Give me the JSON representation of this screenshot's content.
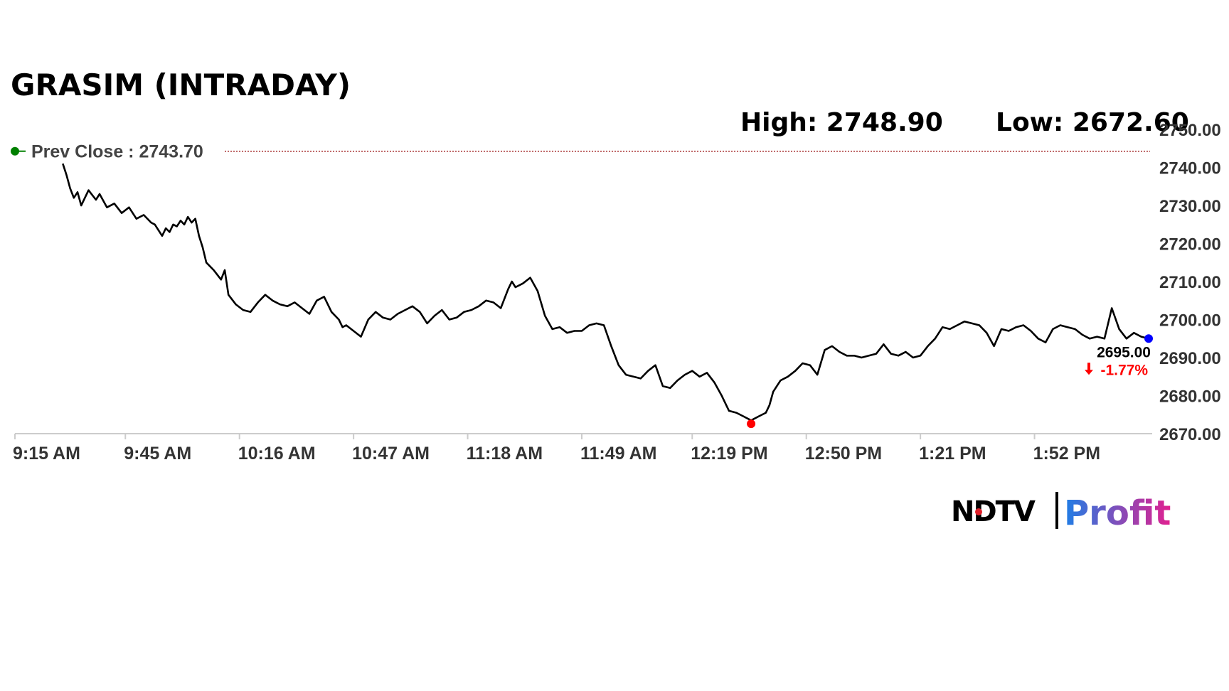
{
  "chart_data": {
    "type": "line",
    "title": "GRASIM (INTRADAY)",
    "high_label": "High: 2748.90",
    "low_label": "Low: 2672.60",
    "prev_close_label": "Prev Close : 2743.70",
    "prev_close": 2743.7,
    "last_value_label": "2695.00",
    "change_label": "-1.77%",
    "last_value": 2695.0,
    "low_value": 2672.6,
    "y_ticks": [
      "2750.00",
      "2740.00",
      "2730.00",
      "2720.00",
      "2710.00",
      "2700.00",
      "2690.00",
      "2680.00",
      "2670.00"
    ],
    "ylim": [
      2670,
      2750
    ],
    "x_ticks": [
      "9:15 AM",
      "9:45 AM",
      "10:16 AM",
      "10:47 AM",
      "11:18 AM",
      "11:49 AM",
      "12:19 PM",
      "12:50 PM",
      "1:21 PM",
      "1:52 PM"
    ],
    "x_tick_minutes": [
      0,
      30,
      61,
      92,
      123,
      154,
      184,
      215,
      246,
      277
    ],
    "xlim_minutes": [
      0,
      308
    ],
    "series": [
      {
        "x_minutes": [
          13,
          14,
          15,
          16,
          17,
          18,
          20,
          22,
          23,
          25,
          27,
          29,
          31,
          33,
          35,
          37,
          38,
          39,
          40,
          41,
          42,
          43,
          44,
          45,
          46,
          47,
          48,
          49,
          50,
          51,
          52,
          54,
          56,
          57,
          58,
          60,
          62,
          64,
          66,
          68,
          70,
          72,
          74,
          76,
          78,
          80,
          82,
          84,
          86,
          88,
          89,
          90,
          92,
          94,
          96,
          98,
          100,
          102,
          104,
          106,
          108,
          110,
          112,
          114,
          116,
          118,
          120,
          122,
          124,
          126,
          128,
          130,
          132,
          134,
          135,
          136,
          138,
          140,
          142,
          144,
          146,
          148,
          150,
          152,
          154,
          156,
          158,
          160,
          162,
          164,
          166,
          168,
          170,
          172,
          174,
          176,
          178,
          180,
          182,
          184,
          186,
          188,
          190,
          192,
          194,
          196,
          198,
          200,
          202,
          204,
          205,
          206,
          208,
          210,
          212,
          214,
          216,
          218,
          220,
          222,
          224,
          226,
          228,
          230,
          232,
          234,
          236,
          238,
          240,
          242,
          244,
          246,
          248,
          250,
          252,
          254,
          256,
          258,
          260,
          262,
          264,
          266,
          268,
          270,
          272,
          274,
          276,
          278,
          280,
          282,
          284,
          286,
          288,
          290,
          292,
          294,
          296,
          298,
          300,
          302,
          304,
          306,
          308
        ],
        "values": [
          2741.0,
          2738.0,
          2734.5,
          2732.0,
          2733.5,
          2730.0,
          2734.0,
          2731.5,
          2733.0,
          2729.5,
          2730.5,
          2728.0,
          2729.5,
          2726.5,
          2727.5,
          2725.5,
          2725.0,
          2723.5,
          2722.0,
          2724.0,
          2723.0,
          2725.0,
          2724.5,
          2726.0,
          2725.0,
          2727.0,
          2725.5,
          2726.5,
          2722.0,
          2719.0,
          2715.0,
          2713.0,
          2710.5,
          2713.0,
          2706.5,
          2704.0,
          2702.5,
          2702.0,
          2704.5,
          2706.5,
          2705.0,
          2704.0,
          2703.5,
          2704.5,
          2703.0,
          2701.5,
          2705.0,
          2706.0,
          2702.0,
          2700.0,
          2698.0,
          2698.5,
          2697.0,
          2695.5,
          2700.0,
          2702.0,
          2700.5,
          2700.0,
          2701.5,
          2702.5,
          2703.5,
          2702.0,
          2699.0,
          2701.0,
          2702.5,
          2700.0,
          2700.5,
          2702.0,
          2702.5,
          2703.5,
          2705.0,
          2704.5,
          2703.0,
          2708.0,
          2710.0,
          2708.5,
          2709.5,
          2711.0,
          2707.5,
          2701.0,
          2697.5,
          2698.0,
          2696.5,
          2697.0,
          2697.0,
          2698.5,
          2699.0,
          2698.5,
          2693.0,
          2688.0,
          2685.5,
          2685.0,
          2684.5,
          2686.5,
          2688.0,
          2682.5,
          2682.0,
          2684.0,
          2685.5,
          2686.5,
          2685.0,
          2686.0,
          2683.5,
          2680.0,
          2676.0,
          2675.5,
          2674.5,
          2673.5,
          2674.5,
          2675.5,
          2677.5,
          2681.0,
          2684.0,
          2685.0,
          2686.5,
          2688.5,
          2688.0,
          2685.5,
          2692.0,
          2693.0,
          2691.5,
          2690.5,
          2690.5,
          2690.0,
          2690.5,
          2691.0,
          2693.5,
          2691.0,
          2690.5,
          2691.5,
          2690.0,
          2690.5,
          2693.0,
          2695.0,
          2698.0,
          2697.5,
          2698.5,
          2699.5,
          2699.0,
          2698.5,
          2696.5,
          2693.0,
          2697.5,
          2697.0,
          2698.0,
          2698.5,
          2697.0,
          2695.0,
          2694.0,
          2697.5,
          2698.5,
          2698.0,
          2697.5,
          2696.0,
          2695.0,
          2695.5,
          2695.0,
          2703.0,
          2697.5,
          2695.0,
          2696.5,
          2695.5,
          2695.0
        ]
      }
    ]
  },
  "branding": {
    "logo_ndtv": "NDTV",
    "logo_profit": "Profit"
  },
  "colors": {
    "line": "#000000",
    "prev_close_line": "#a52a2a",
    "prev_close_dot": "#008000",
    "low_marker": "#ff0000",
    "last_marker": "#0000ff",
    "change_down": "#ff0000",
    "logo_profit_start": "#1e7ee6",
    "logo_profit_end": "#e2208f"
  }
}
